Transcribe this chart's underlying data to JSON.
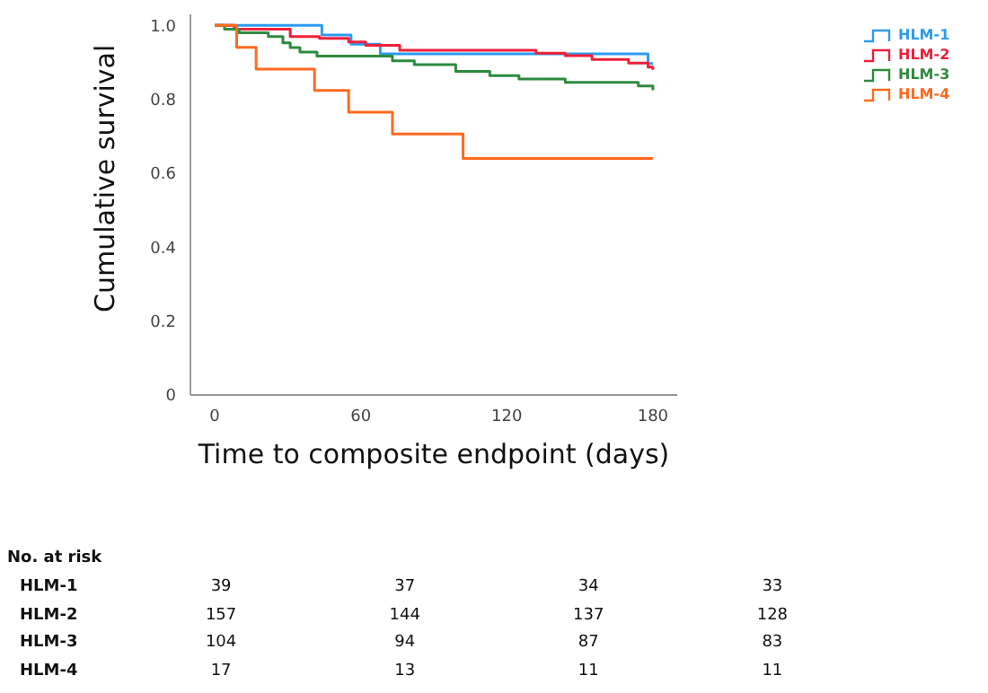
{
  "chart_data": {
    "type": "step",
    "xlabel": "Time to composite endpoint (days)",
    "ylabel": "Cumulative survival",
    "xlim": [
      -10,
      190
    ],
    "xticks": [
      0,
      60,
      120,
      180
    ],
    "ylim": [
      0,
      1.03
    ],
    "yticks": [
      0,
      0.2,
      0.4,
      0.6,
      0.8,
      {
        "value": 1,
        "label": "1.0"
      }
    ],
    "grid": false,
    "legend": "top right",
    "series": [
      {
        "name": "HLM-1",
        "color": "#2e9bf0",
        "x": [
          0,
          44,
          56,
          68,
          178,
          180
        ],
        "values": [
          1,
          0.974,
          0.949,
          0.923,
          0.897,
          0.897
        ]
      },
      {
        "name": "HLM-2",
        "color": "#f0203a",
        "x": [
          0,
          8,
          31,
          43,
          55,
          62,
          76,
          132,
          144,
          155,
          170,
          178,
          180
        ],
        "values": [
          1,
          0.99,
          0.97,
          0.965,
          0.955,
          0.946,
          0.933,
          0.925,
          0.918,
          0.908,
          0.898,
          0.887,
          0.88
        ]
      },
      {
        "name": "HLM-3",
        "color": "#2e8b3e",
        "x": [
          0,
          4,
          10,
          22,
          28,
          31,
          35,
          42,
          73,
          82,
          99,
          113,
          125,
          144,
          174,
          180
        ],
        "values": [
          1,
          0.99,
          0.98,
          0.97,
          0.953,
          0.94,
          0.928,
          0.917,
          0.904,
          0.894,
          0.876,
          0.864,
          0.855,
          0.846,
          0.836,
          0.825
        ]
      },
      {
        "name": "HLM-4",
        "color": "#ff6a1f",
        "x": [
          0,
          9,
          17,
          41,
          55,
          73,
          102,
          180
        ],
        "values": [
          1,
          0.941,
          0.882,
          0.824,
          0.765,
          0.706,
          0.64,
          0.64
        ]
      }
    ],
    "annotations": [
      "No. at risk",
      "HLM-1",
      "39",
      "37",
      "34",
      "33",
      "HLM-2",
      "157",
      "144",
      "137",
      "128",
      "HLM-3",
      "104",
      "94",
      "87",
      "83",
      "HLM-4",
      "17",
      "13",
      "11",
      "11"
    ]
  }
}
